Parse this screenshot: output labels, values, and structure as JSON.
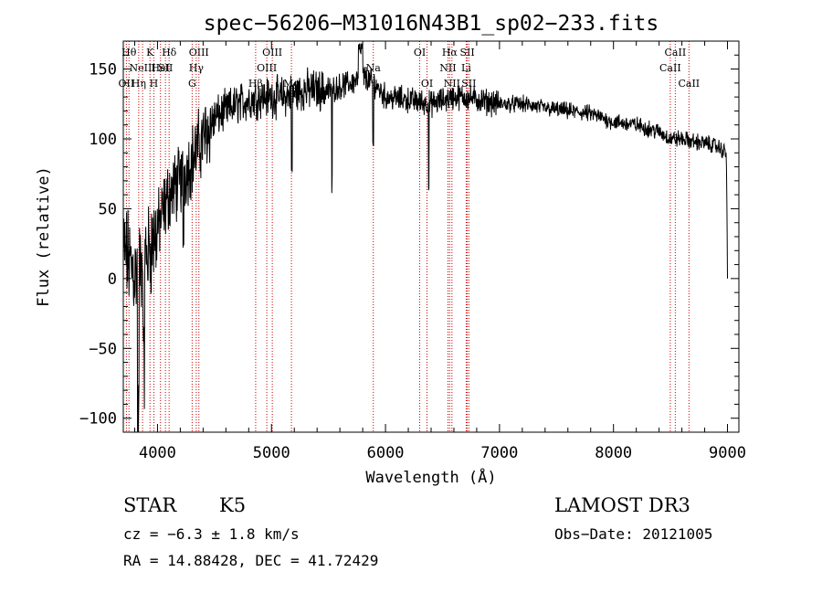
{
  "chart_data": {
    "type": "line",
    "title": "spec−56206−M31016N43B1_sp02−233.fits",
    "xlabel": "Wavelength (Å)",
    "ylabel": "Flux (relative)",
    "xlim": [
      3700,
      9100
    ],
    "ylim": [
      -110,
      170
    ],
    "xticks": [
      4000,
      5000,
      6000,
      7000,
      8000,
      9000
    ],
    "yticks": [
      -100,
      -50,
      0,
      50,
      100,
      150
    ],
    "ytick_labels": [
      "−100",
      "−50",
      "0",
      "50",
      "100",
      "150"
    ],
    "colors": {
      "spectrum": "#000000",
      "lines": "#cc0000",
      "axes": "#000000"
    },
    "spectrum_anchors": {
      "x": [
        3700,
        3800,
        3900,
        4000,
        4100,
        4200,
        4300,
        4400,
        4500,
        4700,
        4900,
        5100,
        5300,
        5500,
        5700,
        5800,
        5900,
        6000,
        6200,
        6400,
        6600,
        6700,
        6800,
        7000,
        7200,
        7400,
        7600,
        7800,
        8000,
        8200,
        8400,
        8500,
        8600,
        8700,
        8800,
        8900,
        8990,
        9000
      ],
      "y": [
        20,
        5,
        15,
        35,
        60,
        70,
        85,
        100,
        115,
        125,
        130,
        130,
        135,
        135,
        140,
        145,
        140,
        130,
        128,
        125,
        130,
        130,
        128,
        125,
        125,
        122,
        120,
        118,
        112,
        110,
        105,
        100,
        100,
        98,
        97,
        95,
        90,
        10
      ]
    },
    "spectral_lines": [
      {
        "x": 3727,
        "label": "OII",
        "row": 2
      },
      {
        "x": 3750,
        "label": "Hθ",
        "row": 0
      },
      {
        "x": 3835,
        "label": "Hη",
        "row": 2
      },
      {
        "x": 3869,
        "label": "NeIII",
        "row": 1
      },
      {
        "x": 3934,
        "label": "K",
        "row": 0
      },
      {
        "x": 3968,
        "label": "H",
        "row": 2
      },
      {
        "x": 4026,
        "label": "HeI",
        "row": 1
      },
      {
        "x": 4070,
        "label": "SII",
        "row": 1
      },
      {
        "x": 4102,
        "label": "Hδ",
        "row": 0
      },
      {
        "x": 4304,
        "label": "G",
        "row": 2
      },
      {
        "x": 4340,
        "label": "Hγ",
        "row": 1
      },
      {
        "x": 4363,
        "label": "OIII",
        "row": 0
      },
      {
        "x": 4861,
        "label": "Hβ",
        "row": 2
      },
      {
        "x": 4959,
        "label": "OIII",
        "row": 1
      },
      {
        "x": 5007,
        "label": "OIII",
        "row": 0
      },
      {
        "x": 5175,
        "label": "Mg",
        "row": 2
      },
      {
        "x": 5893,
        "label": "Na",
        "row": 1
      },
      {
        "x": 6300,
        "label": "OI",
        "row": 0
      },
      {
        "x": 6364,
        "label": "OI",
        "row": 2
      },
      {
        "x": 6548,
        "label": "NII",
        "row": 1
      },
      {
        "x": 6563,
        "label": "Hα",
        "row": 0
      },
      {
        "x": 6583,
        "label": "NII",
        "row": 2
      },
      {
        "x": 6708,
        "label": "Li",
        "row": 1
      },
      {
        "x": 6717,
        "label": "SII",
        "row": 0
      },
      {
        "x": 6731,
        "label": "SII",
        "row": 2
      },
      {
        "x": 8498,
        "label": "CaII",
        "row": 1
      },
      {
        "x": 8542,
        "label": "CaII",
        "row": 0
      },
      {
        "x": 8662,
        "label": "CaII",
        "row": 2
      }
    ]
  },
  "info": {
    "class": "STAR",
    "subclass": "K5",
    "survey": "LAMOST DR3",
    "cz": "cz = −6.3 ± 1.8 km/s",
    "obs_date": "Obs−Date: 20121005",
    "radec": "RA =  14.88428, DEC =  41.72429"
  }
}
